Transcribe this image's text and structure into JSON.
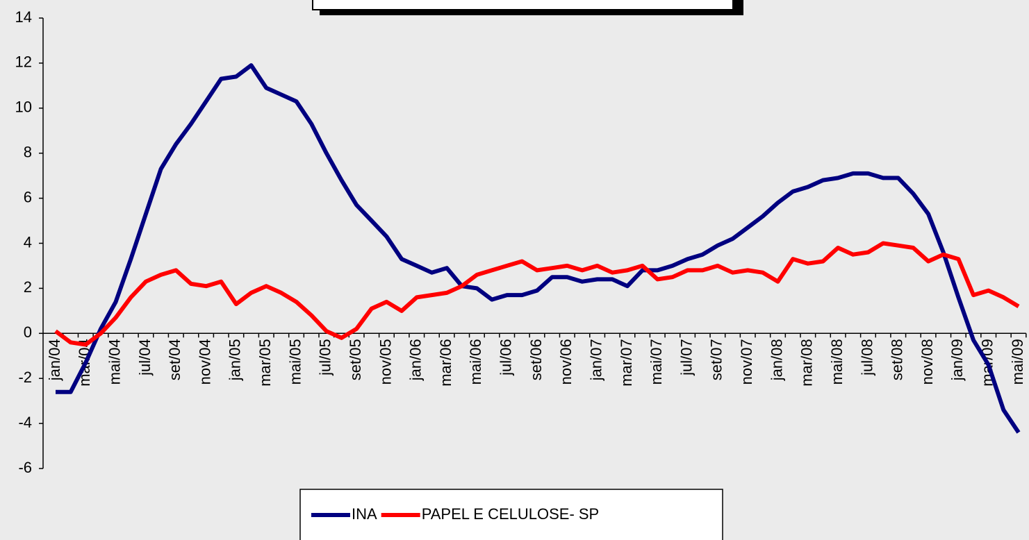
{
  "chart_data": {
    "type": "line",
    "categories": [
      "jan/04",
      null,
      "mar/04",
      null,
      "mai/04",
      null,
      "jul/04",
      null,
      "set/04",
      null,
      "nov/04",
      null,
      "jan/05",
      null,
      "mar/05",
      null,
      "mai/05",
      null,
      "jul/05",
      null,
      "set/05",
      null,
      "nov/05",
      null,
      "jan/06",
      null,
      "mar/06",
      null,
      "mai/06",
      null,
      "jul/06",
      null,
      "set/06",
      null,
      "nov/06",
      null,
      "jan/07",
      null,
      "mar/07",
      null,
      "mai/07",
      null,
      "jul/07",
      null,
      "set/07",
      null,
      "nov/07",
      null,
      "jan/08",
      null,
      "mar/08",
      null,
      "mai/08",
      null,
      "jul/08",
      null,
      "set/08",
      null,
      "nov/08",
      null,
      "jan/09",
      null,
      "mar/09",
      null,
      "mai/09"
    ],
    "series": [
      {
        "name": "INA",
        "color": "#000080",
        "values": [
          -2.6,
          -2.6,
          -1.3,
          0.2,
          1.4,
          3.3,
          5.3,
          7.3,
          8.4,
          9.3,
          10.3,
          11.3,
          11.4,
          11.9,
          10.9,
          10.6,
          10.3,
          9.3,
          8.0,
          6.8,
          5.7,
          5.0,
          4.3,
          3.3,
          3.0,
          2.7,
          2.9,
          2.1,
          2.0,
          1.5,
          1.7,
          1.7,
          1.9,
          2.5,
          2.5,
          2.3,
          2.4,
          2.4,
          2.1,
          2.8,
          2.8,
          3.0,
          3.3,
          3.5,
          3.9,
          4.2,
          4.7,
          5.2,
          5.8,
          6.3,
          6.5,
          6.8,
          6.9,
          7.1,
          7.1,
          6.9,
          6.9,
          6.2,
          5.3,
          3.6,
          1.6,
          -0.3,
          -1.4,
          -3.4,
          -4.4
        ]
      },
      {
        "name": "PAPEL E CELULOSE- SP",
        "color": "#ff0000",
        "values": [
          0.1,
          -0.4,
          -0.5,
          0.0,
          0.7,
          1.6,
          2.3,
          2.6,
          2.8,
          2.2,
          2.1,
          2.3,
          1.3,
          1.8,
          2.1,
          1.8,
          1.4,
          0.8,
          0.1,
          -0.2,
          0.2,
          1.1,
          1.4,
          1.0,
          1.6,
          1.7,
          1.8,
          2.1,
          2.6,
          2.8,
          3.0,
          3.2,
          2.8,
          2.9,
          3.0,
          2.8,
          3.0,
          2.7,
          2.8,
          3.0,
          2.4,
          2.5,
          2.8,
          2.8,
          3.0,
          2.7,
          2.8,
          2.7,
          2.3,
          3.3,
          3.1,
          3.2,
          3.8,
          3.5,
          3.6,
          4.0,
          3.9,
          3.8,
          3.2,
          3.5,
          3.3,
          1.7,
          1.9,
          1.6,
          1.2
        ]
      }
    ],
    "ylim": [
      -6,
      14
    ],
    "yticks": [
      -6,
      -4,
      -2,
      0,
      2,
      4,
      6,
      8,
      10,
      12,
      14
    ],
    "legend": "bottom"
  }
}
